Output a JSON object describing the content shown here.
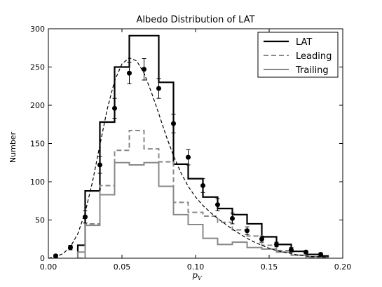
{
  "chart_data": {
    "type": "line",
    "title": "Albedo Distribution of LAT",
    "xlabel": "p_V",
    "ylabel": "Number",
    "xlim": [
      0.0,
      0.2
    ],
    "ylim": [
      0,
      300
    ],
    "x_ticks": [
      "0.00",
      "0.05",
      "0.10",
      "0.15",
      "0.20"
    ],
    "y_ticks": [
      "0",
      "50",
      "100",
      "150",
      "200",
      "250",
      "300"
    ],
    "legend_position": "top-right",
    "bin_edges": [
      0.02,
      0.025,
      0.03,
      0.035,
      0.04,
      0.045,
      0.05,
      0.055,
      0.06,
      0.065,
      0.07,
      0.075,
      0.08,
      0.085,
      0.09,
      0.095,
      0.1,
      0.105,
      0.11,
      0.115,
      0.12,
      0.125,
      0.13,
      0.135,
      0.14,
      0.145,
      0.15,
      0.155,
      0.16,
      0.165,
      0.17,
      0.175,
      0.18,
      0.185,
      0.19
    ],
    "series": [
      {
        "name": "LAT",
        "style": "step-solid",
        "color": "#000000",
        "values": [
          17,
          88,
          88,
          178,
          178,
          250,
          250,
          291,
          291,
          291,
          291,
          230,
          230,
          123,
          123,
          104,
          104,
          80,
          80,
          65,
          65,
          57,
          57,
          45,
          45,
          28,
          28,
          18,
          18,
          9,
          9,
          5,
          5,
          3
        ]
      },
      {
        "name": "Leading",
        "style": "step-dashed",
        "color": "#888888",
        "values": [
          0,
          45,
          45,
          95,
          95,
          141,
          141,
          167,
          167,
          143,
          143,
          126,
          126,
          73,
          73,
          60,
          60,
          55,
          55,
          47,
          47,
          37,
          37,
          29,
          29,
          17,
          17,
          10,
          10,
          4,
          4,
          1,
          1,
          0
        ]
      },
      {
        "name": "Trailing",
        "style": "step-solid",
        "color": "#888888",
        "values": [
          8,
          43,
          43,
          83,
          83,
          125,
          125,
          122,
          122,
          125,
          125,
          94,
          94,
          57,
          57,
          44,
          44,
          26,
          26,
          18,
          18,
          21,
          21,
          14,
          14,
          12,
          12,
          8,
          8,
          4,
          4,
          2,
          2,
          1
        ]
      }
    ],
    "points": {
      "x": [
        0.005,
        0.015,
        0.025,
        0.035,
        0.045,
        0.055,
        0.065,
        0.075,
        0.085,
        0.095,
        0.105,
        0.115,
        0.125,
        0.135,
        0.145,
        0.155,
        0.165,
        0.175,
        0.185
      ],
      "y": [
        3,
        14,
        54,
        122,
        196,
        242,
        247,
        222,
        176,
        132,
        95,
        70,
        52,
        36,
        25,
        18,
        11,
        8,
        5
      ],
      "err": [
        2,
        3,
        8,
        11,
        13,
        14,
        14,
        13,
        12,
        10,
        9,
        8,
        7,
        5,
        4,
        3,
        3,
        2,
        2
      ]
    },
    "fit_curve": {
      "x": [
        0.0,
        0.005,
        0.01,
        0.015,
        0.02,
        0.025,
        0.03,
        0.035,
        0.04,
        0.045,
        0.05,
        0.055,
        0.06,
        0.065,
        0.07,
        0.075,
        0.08,
        0.085,
        0.09,
        0.095,
        0.1,
        0.105,
        0.11,
        0.115,
        0.12,
        0.125,
        0.13,
        0.135,
        0.14,
        0.145,
        0.15,
        0.155,
        0.16,
        0.165,
        0.17,
        0.175,
        0.18,
        0.185,
        0.19
      ],
      "y": [
        0,
        2,
        6,
        15,
        32,
        60,
        100,
        148,
        195,
        232,
        254,
        262,
        258,
        242,
        217,
        189,
        160,
        134,
        112,
        94,
        80,
        69,
        60,
        52,
        45,
        38,
        32,
        26,
        21,
        17,
        13,
        10,
        8,
        6,
        4,
        3,
        2,
        2,
        1
      ]
    }
  }
}
